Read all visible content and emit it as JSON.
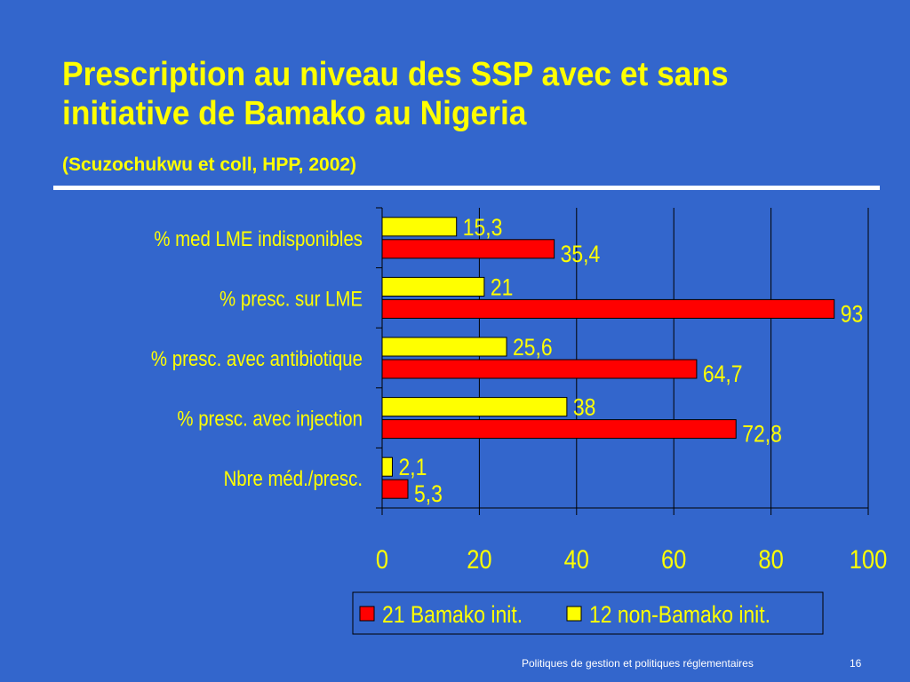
{
  "slide": {
    "title": "Prescription au niveau des SSP avec et sans initiative de Bamako au Nigeria",
    "subtitle": "(Scuzochukwu et coll, HPP, 2002)",
    "footer": "Politiques de gestion et politiques réglementaires",
    "page_number": "16"
  },
  "colors": {
    "background": "#3366cc",
    "title": "#ffff00",
    "bamako": "#ff0000",
    "non_bamako": "#ffff00",
    "label_text": "#ffff00",
    "value_text": "#ffff00",
    "tick_text": "#ffff00",
    "axis": "#000000"
  },
  "chart_data": {
    "type": "bar",
    "orientation": "horizontal",
    "categories": [
      "% med LME indisponibles",
      "% presc. sur LME",
      "% presc. avec antibiotique",
      "% presc. avec injection",
      "Nbre méd./presc."
    ],
    "series": [
      {
        "name": "12 non-Bamako init.",
        "values": [
          15.3,
          21,
          25.6,
          38,
          2.1
        ],
        "value_labels": [
          "15,3",
          "21",
          "25,6",
          "38",
          "2,1"
        ]
      },
      {
        "name": "21 Bamako init.",
        "values": [
          35.4,
          93,
          64.7,
          72.8,
          5.3
        ],
        "value_labels": [
          "35,4",
          "93",
          "64,7",
          "72,8",
          "5,3"
        ]
      }
    ],
    "xlim": [
      0,
      100
    ],
    "x_ticks": [
      "0",
      "20",
      "40",
      "60",
      "80",
      "100"
    ],
    "grid": "vertical",
    "legend": {
      "position": "bottom",
      "entries": [
        "21 Bamako init.",
        "12 non-Bamako init."
      ]
    }
  }
}
